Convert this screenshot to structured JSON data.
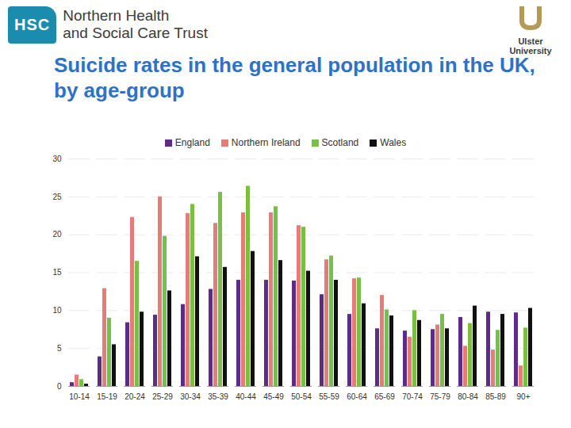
{
  "header": {
    "logo_left": {
      "badge": "HSC",
      "lines": [
        "Northern Health",
        "and Social Care Trust"
      ]
    },
    "logo_right": {
      "lines": [
        "Ulster",
        "University"
      ]
    }
  },
  "chart_data": {
    "type": "bar",
    "title": "Suicide rates in the general population in the UK, by age-group",
    "categories": [
      "10-14",
      "15-19",
      "20-24",
      "25-29",
      "30-34",
      "35-39",
      "40-44",
      "45-49",
      "50-54",
      "55-59",
      "60-64",
      "65-69",
      "70-74",
      "75-79",
      "80-84",
      "85-89",
      "90+"
    ],
    "series": [
      {
        "name": "England",
        "color": "#5e2b88",
        "values": [
          0.5,
          3.9,
          8.4,
          9.4,
          10.8,
          12.8,
          14.0,
          14.0,
          13.9,
          12.1,
          9.5,
          7.6,
          7.3,
          7.5,
          9.1,
          9.8,
          9.7
        ]
      },
      {
        "name": "Northern Ireland",
        "color": "#e67c78",
        "values": [
          1.5,
          12.9,
          22.3,
          25.0,
          22.8,
          21.5,
          22.9,
          22.9,
          21.2,
          16.7,
          14.2,
          12.0,
          6.5,
          8.1,
          5.3,
          4.8,
          2.7
        ]
      },
      {
        "name": "Scotland",
        "color": "#78c043",
        "values": [
          0.9,
          9.0,
          16.5,
          19.8,
          24.0,
          25.6,
          26.4,
          23.7,
          21.0,
          17.2,
          14.3,
          10.1,
          10.0,
          9.5,
          8.3,
          7.4,
          7.7
        ]
      },
      {
        "name": "Wales",
        "color": "#111111",
        "values": [
          0.3,
          5.5,
          9.8,
          12.6,
          17.1,
          15.7,
          17.8,
          16.6,
          15.2,
          14.0,
          10.9,
          9.3,
          8.7,
          7.6,
          10.6,
          9.5,
          10.3
        ]
      }
    ],
    "ylim": [
      0,
      30
    ],
    "yticks": [
      0,
      5,
      10,
      15,
      20,
      25,
      30
    ],
    "grid": true,
    "legend": "top"
  }
}
